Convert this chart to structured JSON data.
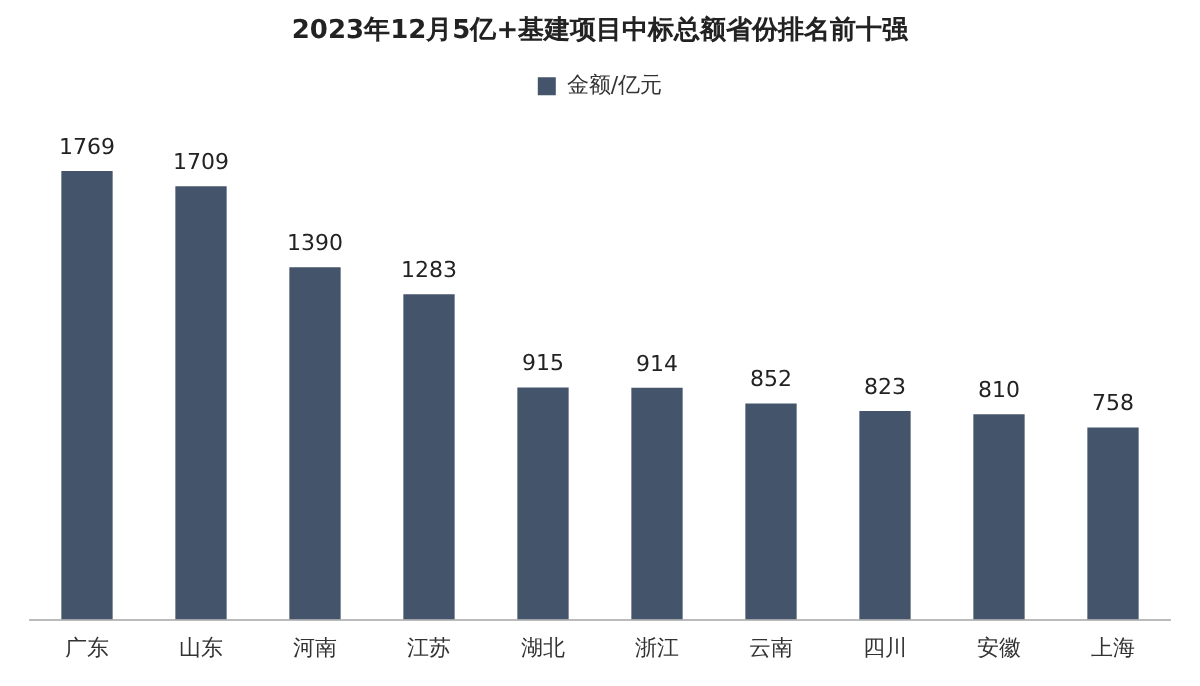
{
  "chart_data": {
    "type": "bar",
    "title": "2023年12月5亿+基建项目中标总额省份排名前十强",
    "categories": [
      "广东",
      "山东",
      "河南",
      "江苏",
      "湖北",
      "浙江",
      "云南",
      "四川",
      "安徽",
      "上海"
    ],
    "series": [
      {
        "name": "金额/亿元",
        "color": "#44546a",
        "values": [
          1769,
          1709,
          1390,
          1283,
          915,
          914,
          852,
          823,
          810,
          758
        ]
      }
    ],
    "data_labels": true,
    "legend": "top",
    "grid": false
  }
}
